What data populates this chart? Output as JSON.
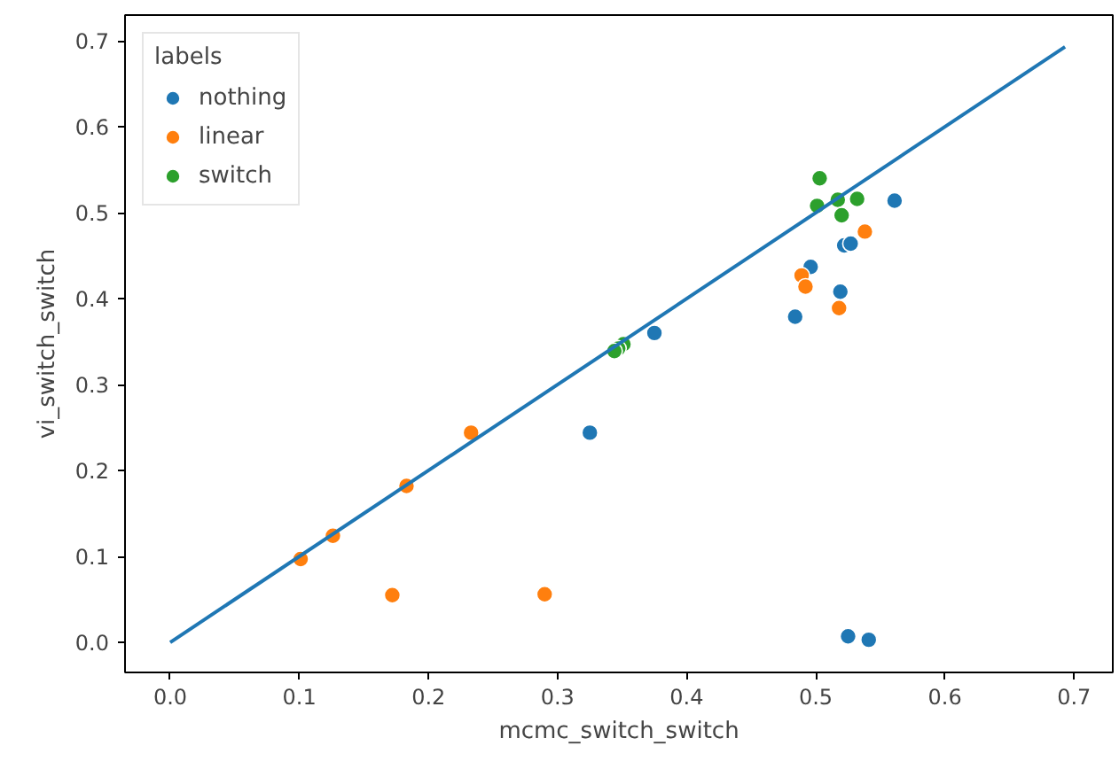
{
  "chart_data": {
    "type": "scatter",
    "xlabel": "mcmc_switch_switch",
    "ylabel": "vi_switch_switch",
    "legend_title": "labels",
    "legend": "top left",
    "grid": false,
    "xlim": [
      -0.035,
      0.73
    ],
    "ylim": [
      -0.035,
      0.73
    ],
    "xticks": [
      {
        "value": 0,
        "label": "0.0"
      },
      0.1,
      0.2,
      0.3,
      0.4,
      0.5,
      0.6,
      0.7
    ],
    "yticks": [
      {
        "value": 0,
        "label": "0.0"
      },
      0.1,
      0.2,
      0.3,
      0.4,
      0.5,
      0.6,
      0.7
    ],
    "series": [
      {
        "name": "nothing",
        "color": "#1f77b4",
        "marker": "circle",
        "x": [
          0.561,
          0.522,
          0.527,
          0.496,
          0.519,
          0.484,
          0.325,
          0.375,
          0.525,
          0.541
        ],
        "values": [
          0.514,
          0.462,
          0.464,
          0.437,
          0.408,
          0.379,
          0.244,
          0.36,
          0.007,
          0.003
        ]
      },
      {
        "name": "linear",
        "color": "#ff7f0e",
        "marker": "circle",
        "x": [
          0.538,
          0.489,
          0.492,
          0.518,
          0.233,
          0.183,
          0.172,
          0.29,
          0.101,
          0.126
        ],
        "values": [
          0.478,
          0.427,
          0.414,
          0.389,
          0.244,
          0.182,
          0.055,
          0.056,
          0.097,
          0.124
        ]
      },
      {
        "name": "switch",
        "color": "#2ca02c",
        "marker": "circle",
        "x": [
          0.503,
          0.501,
          0.517,
          0.52,
          0.532,
          0.351,
          0.347,
          0.344
        ],
        "values": [
          0.54,
          0.508,
          0.515,
          0.497,
          0.516,
          0.347,
          0.342,
          0.339
        ]
      },
      {
        "type": "line",
        "color": "#1f77b4",
        "x": [
          0.0,
          0.693
        ],
        "values": [
          0.0,
          0.693
        ]
      }
    ]
  }
}
